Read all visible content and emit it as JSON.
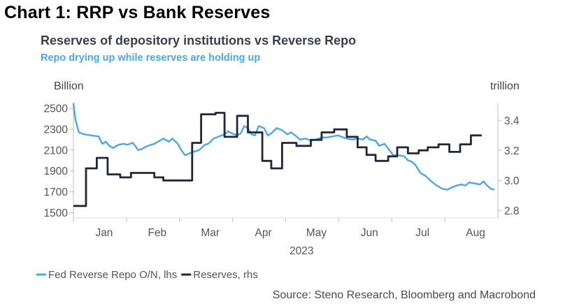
{
  "header": "Chart 1: RRP vs Bank Reserves",
  "chart_data": {
    "type": "line",
    "title": "Reserves of depository institutions vs Reverse Repo",
    "subtitle": "Repo drying up while reserves are holding up",
    "source": "Source: Steno Research, Bloomberg and Macrobond",
    "y_left": {
      "label": "Billion",
      "ticks": [
        1500,
        1700,
        1900,
        2100,
        2300,
        2500
      ],
      "range": [
        1450,
        2600
      ]
    },
    "y_right": {
      "label": "trillion",
      "ticks": [
        "2.8",
        "3.0",
        "3.2",
        "3.4"
      ],
      "range": [
        2.75,
        3.55
      ]
    },
    "x": {
      "months": [
        "Jan",
        "Feb",
        "Mar",
        "Apr",
        "May",
        "Jun",
        "Jul",
        "Aug"
      ],
      "year": "2023",
      "range": [
        0,
        236
      ]
    },
    "colors": {
      "rrp": "#4aa8ea",
      "reserves": "#22263a"
    },
    "series": [
      {
        "name": "Fed Reverse Repo O/N, lhs",
        "axis": "left",
        "points": [
          [
            0,
            2550
          ],
          [
            1,
            2400
          ],
          [
            3,
            2270
          ],
          [
            6,
            2250
          ],
          [
            10,
            2240
          ],
          [
            14,
            2230
          ],
          [
            16,
            2160
          ],
          [
            18,
            2180
          ],
          [
            20,
            2140
          ],
          [
            22,
            2120
          ],
          [
            25,
            2150
          ],
          [
            28,
            2160
          ],
          [
            30,
            2150
          ],
          [
            33,
            2170
          ],
          [
            36,
            2100
          ],
          [
            38,
            2110
          ],
          [
            40,
            2130
          ],
          [
            43,
            2150
          ],
          [
            45,
            2160
          ],
          [
            48,
            2190
          ],
          [
            50,
            2210
          ],
          [
            53,
            2180
          ],
          [
            55,
            2210
          ],
          [
            58,
            2160
          ],
          [
            60,
            2100
          ],
          [
            62,
            2050
          ],
          [
            66,
            2080
          ],
          [
            70,
            2100
          ],
          [
            73,
            2150
          ],
          [
            75,
            2160
          ],
          [
            78,
            2210
          ],
          [
            81,
            2230
          ],
          [
            84,
            2250
          ],
          [
            86,
            2280
          ],
          [
            88,
            2260
          ],
          [
            91,
            2240
          ],
          [
            93,
            2260
          ],
          [
            95,
            2330
          ],
          [
            97,
            2310
          ],
          [
            99,
            2250
          ],
          [
            101,
            2240
          ],
          [
            103,
            2330
          ],
          [
            106,
            2310
          ],
          [
            108,
            2240
          ],
          [
            110,
            2260
          ],
          [
            113,
            2310
          ],
          [
            116,
            2290
          ],
          [
            119,
            2250
          ],
          [
            121,
            2270
          ],
          [
            124,
            2230
          ],
          [
            126,
            2200
          ],
          [
            129,
            2210
          ],
          [
            132,
            2190
          ],
          [
            135,
            2200
          ],
          [
            138,
            2220
          ],
          [
            141,
            2220
          ],
          [
            144,
            2230
          ],
          [
            147,
            2240
          ],
          [
            150,
            2220
          ],
          [
            152,
            2210
          ],
          [
            155,
            2200
          ],
          [
            158,
            2210
          ],
          [
            161,
            2200
          ],
          [
            163,
            2230
          ],
          [
            165,
            2200
          ],
          [
            168,
            2190
          ],
          [
            170,
            2140
          ],
          [
            173,
            2160
          ],
          [
            176,
            2090
          ],
          [
            178,
            2050
          ],
          [
            181,
            2050
          ],
          [
            184,
            2040
          ],
          [
            186,
            2000
          ],
          [
            188,
            1990
          ],
          [
            190,
            1960
          ],
          [
            193,
            1880
          ],
          [
            196,
            1850
          ],
          [
            199,
            1800
          ],
          [
            202,
            1760
          ],
          [
            205,
            1730
          ],
          [
            208,
            1720
          ],
          [
            210,
            1740
          ],
          [
            213,
            1760
          ],
          [
            216,
            1770
          ],
          [
            218,
            1760
          ],
          [
            220,
            1790
          ],
          [
            223,
            1780
          ],
          [
            226,
            1770
          ],
          [
            228,
            1800
          ],
          [
            230,
            1760
          ],
          [
            232,
            1730
          ],
          [
            234,
            1720
          ]
        ]
      },
      {
        "name": "Reserves, rhs",
        "axis": "right",
        "points": [
          [
            0,
            2.83
          ],
          [
            7,
            2.83
          ],
          [
            7,
            3.08
          ],
          [
            13,
            3.08
          ],
          [
            13,
            3.15
          ],
          [
            19,
            3.15
          ],
          [
            19,
            3.04
          ],
          [
            26,
            3.04
          ],
          [
            26,
            3.02
          ],
          [
            32,
            3.02
          ],
          [
            32,
            3.05
          ],
          [
            45,
            3.05
          ],
          [
            45,
            3.02
          ],
          [
            50,
            3.02
          ],
          [
            50,
            3.0
          ],
          [
            66,
            3.0
          ],
          [
            66,
            3.25
          ],
          [
            71,
            3.25
          ],
          [
            71,
            3.44
          ],
          [
            79,
            3.44
          ],
          [
            79,
            3.45
          ],
          [
            84,
            3.45
          ],
          [
            84,
            3.29
          ],
          [
            91,
            3.29
          ],
          [
            91,
            3.43
          ],
          [
            97,
            3.43
          ],
          [
            97,
            3.32
          ],
          [
            105,
            3.32
          ],
          [
            105,
            3.13
          ],
          [
            110,
            3.13
          ],
          [
            110,
            3.08
          ],
          [
            116,
            3.08
          ],
          [
            116,
            3.25
          ],
          [
            124,
            3.25
          ],
          [
            124,
            3.23
          ],
          [
            132,
            3.23
          ],
          [
            132,
            3.27
          ],
          [
            138,
            3.27
          ],
          [
            138,
            3.32
          ],
          [
            145,
            3.32
          ],
          [
            145,
            3.34
          ],
          [
            152,
            3.34
          ],
          [
            152,
            3.29
          ],
          [
            158,
            3.29
          ],
          [
            158,
            3.22
          ],
          [
            163,
            3.22
          ],
          [
            163,
            3.17
          ],
          [
            168,
            3.17
          ],
          [
            168,
            3.13
          ],
          [
            175,
            3.13
          ],
          [
            175,
            3.16
          ],
          [
            180,
            3.16
          ],
          [
            180,
            3.22
          ],
          [
            186,
            3.22
          ],
          [
            186,
            3.18
          ],
          [
            192,
            3.18
          ],
          [
            192,
            3.2
          ],
          [
            197,
            3.2
          ],
          [
            197,
            3.22
          ],
          [
            203,
            3.22
          ],
          [
            203,
            3.24
          ],
          [
            209,
            3.24
          ],
          [
            209,
            3.19
          ],
          [
            215,
            3.19
          ],
          [
            215,
            3.24
          ],
          [
            221,
            3.24
          ],
          [
            221,
            3.3
          ],
          [
            227,
            3.3
          ]
        ]
      }
    ],
    "legend_position": "bottom-left",
    "grid": false
  }
}
